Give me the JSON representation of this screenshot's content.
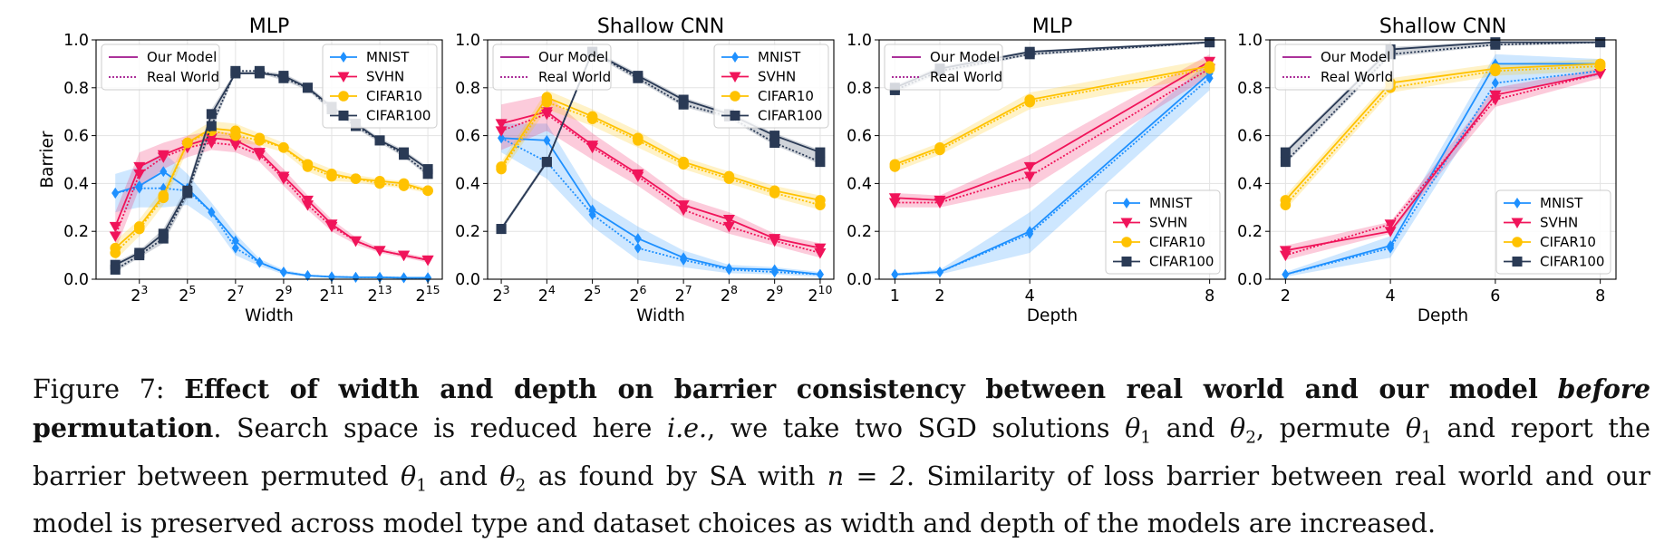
{
  "chart_data": [
    {
      "type": "line",
      "title": "MLP",
      "xlabel": "Width",
      "ylabel": "Barrier",
      "x_scale": "log2",
      "x_ticks": [
        "2^3",
        "2^5",
        "2^7",
        "2^9",
        "2^11",
        "2^13",
        "2^15"
      ],
      "x_tick_values": [
        3,
        5,
        7,
        9,
        11,
        13,
        15
      ],
      "xlim": [
        1.2,
        15.6
      ],
      "ylim": [
        0.0,
        1.0
      ],
      "y_ticks": [
        "0.0",
        "0.2",
        "0.4",
        "0.6",
        "0.8",
        "1.0"
      ],
      "grid": true,
      "legend_style": {
        "position": "top-left",
        "entries": [
          "Our Model",
          "Real World"
        ]
      },
      "legend_series": {
        "position": "top-right"
      },
      "x": [
        2,
        3,
        4,
        5,
        6,
        7,
        8,
        9,
        10,
        11,
        12,
        13,
        14,
        15
      ],
      "series": [
        {
          "name": "MNIST",
          "color": "#1e90ff",
          "marker": "diamond",
          "model": [
            0.36,
            0.39,
            0.45,
            0.38,
            0.28,
            0.16,
            0.07,
            0.03,
            0.015,
            0.01,
            0.008,
            0.008,
            0.006,
            0.006
          ],
          "real": [
            0.36,
            0.38,
            0.38,
            0.37,
            0.28,
            0.13,
            0.07,
            0.03,
            0.015,
            0.01,
            0.008,
            0.008,
            0.006,
            0.006
          ],
          "band": [
            0.08,
            0.08,
            0.08,
            0.06,
            0.04,
            0.03,
            0.015,
            0.01,
            0.005,
            0.005,
            0.004,
            0.004,
            0.003,
            0.003
          ]
        },
        {
          "name": "SVHN",
          "color": "#f0145a",
          "marker": "triangle",
          "model": [
            0.22,
            0.47,
            0.52,
            0.56,
            0.59,
            0.58,
            0.53,
            0.43,
            0.33,
            0.23,
            0.16,
            0.12,
            0.1,
            0.08
          ],
          "real": [
            0.18,
            0.44,
            0.51,
            0.55,
            0.57,
            0.56,
            0.52,
            0.42,
            0.31,
            0.22,
            0.16,
            0.12,
            0.1,
            0.08
          ],
          "band": [
            0.06,
            0.06,
            0.05,
            0.04,
            0.03,
            0.03,
            0.03,
            0.03,
            0.02,
            0.02,
            0.015,
            0.01,
            0.01,
            0.01
          ]
        },
        {
          "name": "CIFAR10",
          "color": "#ffc200",
          "marker": "circle",
          "model": [
            0.13,
            0.22,
            0.35,
            0.57,
            0.63,
            0.62,
            0.59,
            0.55,
            0.48,
            0.44,
            0.42,
            0.41,
            0.4,
            0.37
          ],
          "real": [
            0.11,
            0.21,
            0.34,
            0.57,
            0.62,
            0.6,
            0.58,
            0.55,
            0.47,
            0.43,
            0.42,
            0.4,
            0.39,
            0.37
          ],
          "band": [
            0.03,
            0.03,
            0.03,
            0.03,
            0.03,
            0.03,
            0.02,
            0.02,
            0.02,
            0.02,
            0.015,
            0.01,
            0.01,
            0.01
          ]
        },
        {
          "name": "CIFAR100",
          "color": "#2a3a55",
          "marker": "square",
          "model": [
            0.06,
            0.11,
            0.19,
            0.37,
            0.69,
            0.86,
            0.86,
            0.85,
            0.8,
            0.72,
            0.65,
            0.58,
            0.53,
            0.46
          ],
          "real": [
            0.04,
            0.1,
            0.17,
            0.36,
            0.64,
            0.87,
            0.87,
            0.84,
            0.8,
            0.71,
            0.64,
            0.58,
            0.52,
            0.44
          ],
          "band": [
            0.01,
            0.01,
            0.02,
            0.02,
            0.02,
            0.01,
            0.01,
            0.01,
            0.01,
            0.01,
            0.01,
            0.01,
            0.01,
            0.01
          ]
        }
      ]
    },
    {
      "type": "line",
      "title": "Shallow CNN",
      "xlabel": "Width",
      "ylabel": "",
      "x_scale": "log2",
      "x_ticks": [
        "2^3",
        "2^4",
        "2^5",
        "2^6",
        "2^7",
        "2^8",
        "2^9",
        "2^10"
      ],
      "x_tick_values": [
        3,
        4,
        5,
        6,
        7,
        8,
        9,
        10
      ],
      "xlim": [
        2.7,
        10.3
      ],
      "ylim": [
        0.0,
        1.0
      ],
      "y_ticks": [
        "0.0",
        "0.2",
        "0.4",
        "0.6",
        "0.8",
        "1.0"
      ],
      "grid": true,
      "legend_style": {
        "position": "top-left",
        "entries": [
          "Our Model",
          "Real World"
        ]
      },
      "legend_series": {
        "position": "top-right"
      },
      "x": [
        3,
        4,
        5,
        6,
        7,
        8,
        9,
        10
      ],
      "series": [
        {
          "name": "MNIST",
          "color": "#1e90ff",
          "marker": "diamond",
          "model": [
            0.59,
            0.58,
            0.29,
            0.17,
            0.09,
            0.045,
            0.04,
            0.02
          ],
          "real": [
            0.59,
            0.49,
            0.27,
            0.13,
            0.08,
            0.04,
            0.03,
            0.02
          ],
          "band": [
            0.06,
            0.07,
            0.05,
            0.05,
            0.03,
            0.015,
            0.01,
            0.01
          ]
        },
        {
          "name": "SVHN",
          "color": "#f0145a",
          "marker": "triangle",
          "model": [
            0.65,
            0.7,
            0.56,
            0.44,
            0.31,
            0.25,
            0.17,
            0.13
          ],
          "real": [
            0.62,
            0.69,
            0.55,
            0.43,
            0.29,
            0.22,
            0.16,
            0.11
          ],
          "band": [
            0.08,
            0.07,
            0.05,
            0.04,
            0.03,
            0.03,
            0.02,
            0.02
          ]
        },
        {
          "name": "CIFAR10",
          "color": "#ffc200",
          "marker": "circle",
          "model": [
            0.47,
            0.76,
            0.68,
            0.59,
            0.49,
            0.43,
            0.37,
            0.33
          ],
          "real": [
            0.46,
            0.74,
            0.67,
            0.58,
            0.48,
            0.42,
            0.36,
            0.31
          ],
          "band": [
            0.02,
            0.03,
            0.03,
            0.03,
            0.02,
            0.02,
            0.02,
            0.02
          ]
        },
        {
          "name": "CIFAR100",
          "color": "#2a3a55",
          "marker": "square",
          "model": [
            0.21,
            0.49,
            0.95,
            0.85,
            0.75,
            0.69,
            0.6,
            0.53
          ],
          "real": [
            0.21,
            0.49,
            0.95,
            0.84,
            0.73,
            0.68,
            0.57,
            0.49
          ],
          "band": [
            0.01,
            0.01,
            0.01,
            0.01,
            0.01,
            0.01,
            0.01,
            0.01
          ]
        }
      ]
    },
    {
      "type": "line",
      "title": "MLP",
      "xlabel": "Depth",
      "ylabel": "",
      "x_scale": "linear",
      "x_ticks": [
        "1",
        "2",
        "4",
        "8"
      ],
      "x_tick_values": [
        1,
        2,
        4,
        8
      ],
      "xlim": [
        0.65,
        8.35
      ],
      "ylim": [
        0.0,
        1.0
      ],
      "y_ticks": [
        "0.0",
        "0.2",
        "0.4",
        "0.6",
        "0.8",
        "1.0"
      ],
      "grid": true,
      "legend_style": {
        "position": "top-left",
        "entries": [
          "Our Model",
          "Real World"
        ]
      },
      "legend_series": {
        "position": "bottom-right"
      },
      "x": [
        1,
        2,
        4,
        8
      ],
      "series": [
        {
          "name": "MNIST",
          "color": "#1e90ff",
          "marker": "diamond",
          "model": [
            0.02,
            0.03,
            0.2,
            0.86
          ],
          "real": [
            0.02,
            0.03,
            0.19,
            0.84
          ],
          "band": [
            0.005,
            0.01,
            0.08,
            0.05
          ]
        },
        {
          "name": "SVHN",
          "color": "#f0145a",
          "marker": "triangle",
          "model": [
            0.34,
            0.33,
            0.47,
            0.91
          ],
          "real": [
            0.32,
            0.32,
            0.43,
            0.88
          ],
          "band": [
            0.02,
            0.02,
            0.05,
            0.03
          ]
        },
        {
          "name": "CIFAR10",
          "color": "#ffc200",
          "marker": "circle",
          "model": [
            0.48,
            0.55,
            0.75,
            0.89
          ],
          "real": [
            0.47,
            0.54,
            0.74,
            0.88
          ],
          "band": [
            0.02,
            0.02,
            0.03,
            0.03
          ]
        },
        {
          "name": "CIFAR100",
          "color": "#2a3a55",
          "marker": "square",
          "model": [
            0.8,
            0.88,
            0.95,
            0.99
          ],
          "real": [
            0.79,
            0.87,
            0.94,
            0.99
          ],
          "band": [
            0.01,
            0.01,
            0.005,
            0.005
          ]
        }
      ]
    },
    {
      "type": "line",
      "title": "Shallow CNN",
      "xlabel": "Depth",
      "ylabel": "",
      "x_scale": "linear",
      "x_ticks": [
        "2",
        "4",
        "6",
        "8"
      ],
      "x_tick_values": [
        2,
        4,
        6,
        8
      ],
      "xlim": [
        1.7,
        8.3
      ],
      "ylim": [
        0.0,
        1.0
      ],
      "y_ticks": [
        "0.0",
        "0.2",
        "0.4",
        "0.6",
        "0.8",
        "1.0"
      ],
      "grid": true,
      "legend_style": {
        "position": "top-left",
        "entries": [
          "Our Model",
          "Real World"
        ]
      },
      "legend_series": {
        "position": "bottom-right"
      },
      "x": [
        2,
        4,
        6,
        8
      ],
      "series": [
        {
          "name": "MNIST",
          "color": "#1e90ff",
          "marker": "diamond",
          "model": [
            0.02,
            0.14,
            0.9,
            0.9
          ],
          "real": [
            0.02,
            0.13,
            0.82,
            0.87
          ],
          "band": [
            0.01,
            0.04,
            0.04,
            0.02
          ]
        },
        {
          "name": "SVHN",
          "color": "#f0145a",
          "marker": "triangle",
          "model": [
            0.12,
            0.2,
            0.77,
            0.86
          ],
          "real": [
            0.1,
            0.23,
            0.75,
            0.86
          ],
          "band": [
            0.02,
            0.04,
            0.03,
            0.02
          ]
        },
        {
          "name": "CIFAR10",
          "color": "#ffc200",
          "marker": "circle",
          "model": [
            0.33,
            0.82,
            0.88,
            0.9
          ],
          "real": [
            0.31,
            0.8,
            0.87,
            0.89
          ],
          "band": [
            0.02,
            0.02,
            0.02,
            0.02
          ]
        },
        {
          "name": "CIFAR100",
          "color": "#2a3a55",
          "marker": "square",
          "model": [
            0.53,
            0.96,
            0.99,
            0.99
          ],
          "real": [
            0.49,
            0.94,
            0.98,
            0.99
          ],
          "band": [
            0.01,
            0.01,
            0.005,
            0.005
          ]
        }
      ]
    }
  ],
  "legend_labels": {
    "model": "Our Model",
    "real": "Real World"
  },
  "caption": {
    "label": "Figure 7:",
    "bold_1": "Effect of width and depth on barrier consistency between real world and our model",
    "italic_1": "before",
    "bold_2": "permutation",
    "text_1": ". Search space is reduced here",
    "italic_2": "i.e.",
    "text_2": ", we take two SGD solutions",
    "text_3": "and",
    "text_4": ", permute",
    "text_5": "and report the",
    "text_6": "barrier between permuted",
    "text_7": "and",
    "text_8": "as found by SA with",
    "text_9": ". Similarity of loss barrier between real world and our",
    "text_10": "model is preserved across model type and dataset choices as width and depth of the models are increased.",
    "theta1": "θ1",
    "theta2": "θ2",
    "n_eq": "n = 2"
  }
}
